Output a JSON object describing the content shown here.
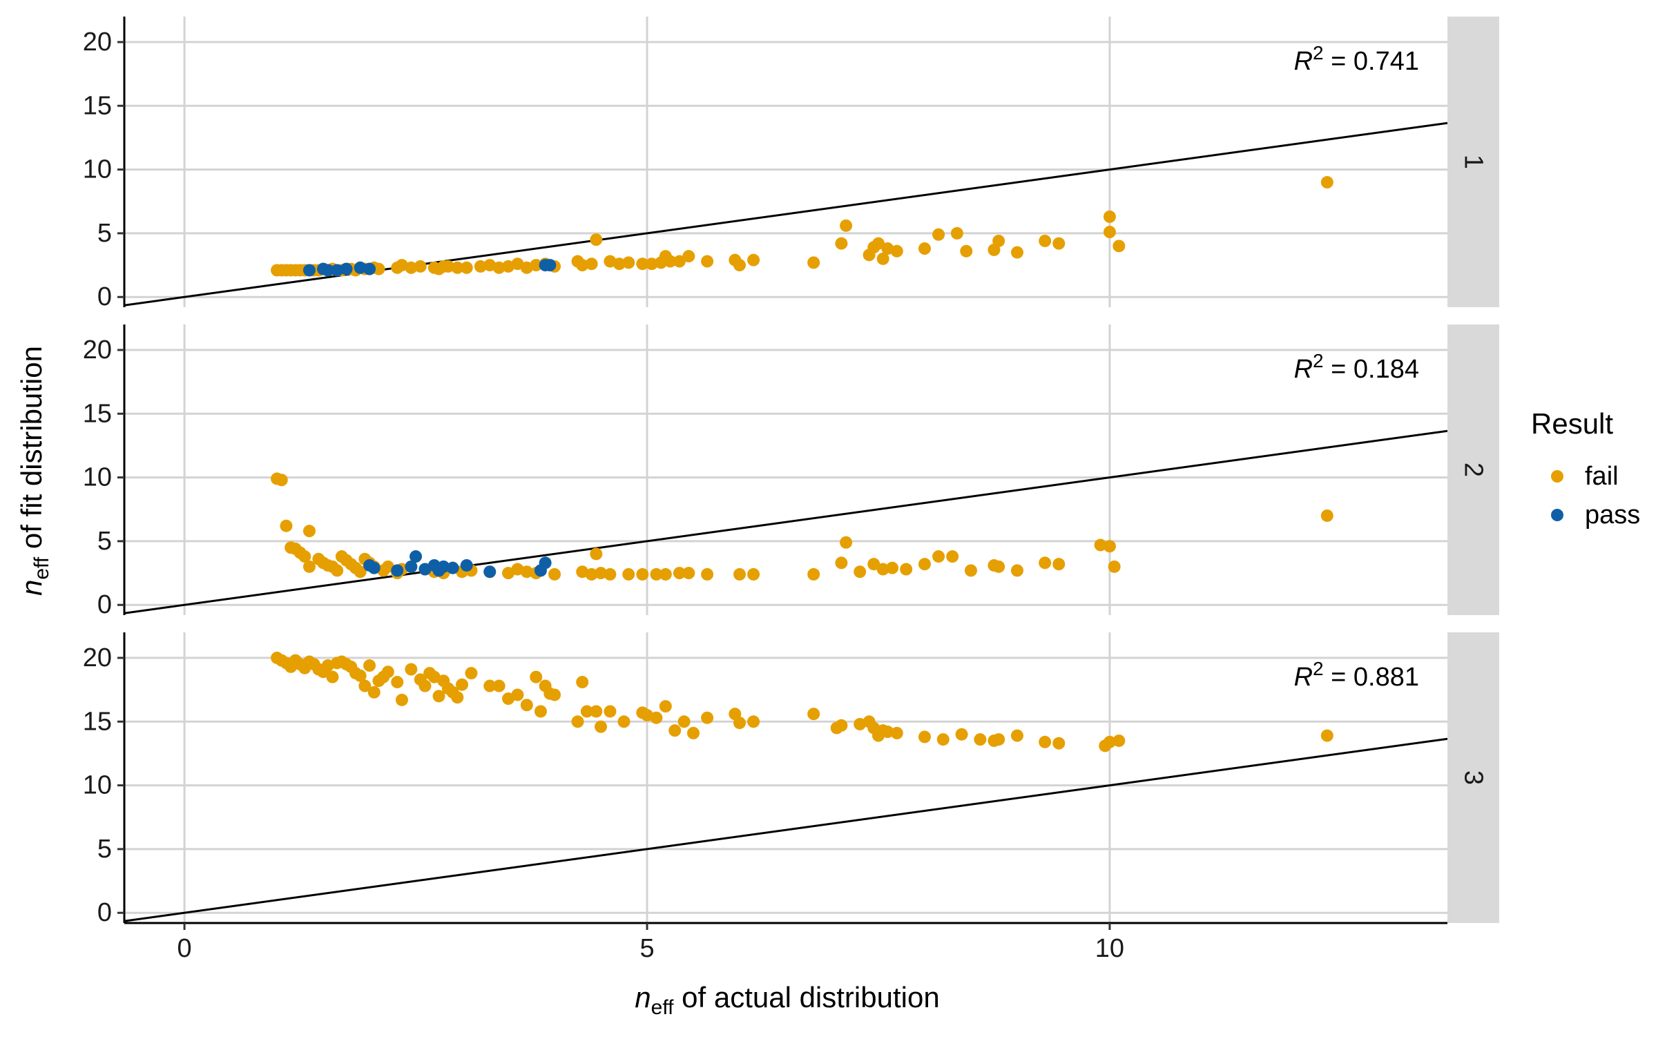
{
  "chart_data": {
    "type": "scatter",
    "x_axis": {
      "label_var": "n",
      "label_sub": "eff",
      "label_rest": " of actual distribution",
      "ticks": [
        0,
        5,
        10
      ],
      "tick_labels": [
        "0",
        "5",
        "10"
      ],
      "range": [
        -0.65,
        13.65
      ]
    },
    "y_axis": {
      "label_var": "n",
      "label_sub": "eff",
      "label_rest": " of fit distribution",
      "ticks": [
        0,
        5,
        10,
        15,
        20
      ],
      "tick_labels": [
        "0",
        "5",
        "10",
        "15",
        "20"
      ],
      "range": [
        -0.8,
        22.0
      ]
    },
    "reference_line": {
      "slope": 1,
      "intercept": 0
    },
    "grid": true,
    "legend": {
      "title": "Result",
      "position": "right",
      "entries": [
        {
          "label": "fail",
          "color": "#E69F00"
        },
        {
          "label": "pass",
          "color": "#0F5FA6"
        }
      ]
    },
    "panels": [
      {
        "strip": "1",
        "r2_var": "R",
        "r2_sup": "2",
        "r2_value": " = 0.741",
        "fail": [
          [
            1.0,
            2.1
          ],
          [
            1.05,
            2.1
          ],
          [
            1.1,
            2.1
          ],
          [
            1.15,
            2.1
          ],
          [
            1.2,
            2.1
          ],
          [
            1.25,
            2.1
          ],
          [
            1.3,
            2.1
          ],
          [
            1.35,
            2.1
          ],
          [
            1.4,
            2.1
          ],
          [
            1.45,
            2.1
          ],
          [
            1.5,
            2.2
          ],
          [
            1.55,
            2.1
          ],
          [
            1.6,
            2.2
          ],
          [
            1.7,
            2.1
          ],
          [
            1.75,
            2.2
          ],
          [
            1.8,
            2.2
          ],
          [
            1.85,
            2.1
          ],
          [
            1.9,
            2.3
          ],
          [
            1.95,
            2.2
          ],
          [
            2.0,
            2.2
          ],
          [
            2.05,
            2.3
          ],
          [
            2.1,
            2.2
          ],
          [
            2.3,
            2.3
          ],
          [
            2.35,
            2.5
          ],
          [
            2.45,
            2.3
          ],
          [
            2.55,
            2.4
          ],
          [
            2.7,
            2.3
          ],
          [
            2.75,
            2.2
          ],
          [
            2.8,
            2.4
          ],
          [
            2.85,
            2.4
          ],
          [
            2.95,
            2.3
          ],
          [
            3.05,
            2.3
          ],
          [
            3.2,
            2.4
          ],
          [
            3.3,
            2.5
          ],
          [
            3.4,
            2.3
          ],
          [
            3.5,
            2.4
          ],
          [
            3.6,
            2.6
          ],
          [
            3.7,
            2.3
          ],
          [
            3.8,
            2.5
          ],
          [
            3.9,
            2.6
          ],
          [
            4.0,
            2.4
          ],
          [
            4.25,
            2.8
          ],
          [
            4.3,
            2.5
          ],
          [
            4.4,
            2.6
          ],
          [
            4.45,
            4.5
          ],
          [
            4.6,
            2.8
          ],
          [
            4.7,
            2.6
          ],
          [
            4.8,
            2.7
          ],
          [
            4.95,
            2.6
          ],
          [
            5.05,
            2.6
          ],
          [
            5.15,
            2.7
          ],
          [
            5.2,
            3.2
          ],
          [
            5.25,
            2.8
          ],
          [
            5.35,
            2.8
          ],
          [
            5.45,
            3.2
          ],
          [
            5.65,
            2.8
          ],
          [
            5.95,
            2.9
          ],
          [
            6.0,
            2.5
          ],
          [
            6.15,
            2.9
          ],
          [
            6.8,
            2.7
          ],
          [
            7.1,
            4.2
          ],
          [
            7.15,
            5.6
          ],
          [
            7.4,
            3.3
          ],
          [
            7.45,
            3.9
          ],
          [
            7.5,
            4.2
          ],
          [
            7.55,
            3.0
          ],
          [
            7.6,
            3.8
          ],
          [
            7.7,
            3.6
          ],
          [
            8.0,
            3.8
          ],
          [
            8.15,
            4.9
          ],
          [
            8.35,
            5.0
          ],
          [
            8.45,
            3.6
          ],
          [
            8.75,
            3.7
          ],
          [
            8.8,
            4.4
          ],
          [
            9.0,
            3.5
          ],
          [
            9.3,
            4.4
          ],
          [
            9.45,
            4.2
          ],
          [
            10.0,
            6.3
          ],
          [
            10.0,
            5.1
          ],
          [
            10.1,
            4.0
          ],
          [
            12.35,
            9.0
          ]
        ],
        "pass": [
          [
            1.35,
            2.1
          ],
          [
            1.5,
            2.2
          ],
          [
            1.55,
            2.1
          ],
          [
            1.65,
            2.1
          ],
          [
            1.75,
            2.2
          ],
          [
            1.9,
            2.3
          ],
          [
            2.0,
            2.2
          ],
          [
            3.9,
            2.5
          ],
          [
            3.95,
            2.5
          ]
        ]
      },
      {
        "strip": "2",
        "r2_var": "R",
        "r2_sup": "2",
        "r2_value": " = 0.184",
        "fail": [
          [
            1.0,
            9.9
          ],
          [
            1.05,
            9.8
          ],
          [
            1.1,
            6.2
          ],
          [
            1.15,
            4.5
          ],
          [
            1.2,
            4.4
          ],
          [
            1.25,
            4.1
          ],
          [
            1.3,
            3.8
          ],
          [
            1.35,
            5.8
          ],
          [
            1.35,
            3.0
          ],
          [
            1.45,
            3.6
          ],
          [
            1.5,
            3.3
          ],
          [
            1.55,
            3.1
          ],
          [
            1.6,
            3.0
          ],
          [
            1.65,
            2.7
          ],
          [
            1.7,
            3.8
          ],
          [
            1.75,
            3.5
          ],
          [
            1.8,
            3.2
          ],
          [
            1.85,
            2.9
          ],
          [
            1.9,
            2.6
          ],
          [
            1.95,
            3.6
          ],
          [
            2.0,
            3.3
          ],
          [
            2.05,
            3.0
          ],
          [
            2.15,
            2.7
          ],
          [
            2.2,
            3.0
          ],
          [
            2.3,
            2.5
          ],
          [
            2.35,
            2.8
          ],
          [
            2.45,
            3.0
          ],
          [
            2.6,
            2.8
          ],
          [
            2.7,
            2.6
          ],
          [
            2.8,
            2.5
          ],
          [
            2.9,
            2.9
          ],
          [
            3.0,
            2.6
          ],
          [
            3.1,
            2.7
          ],
          [
            3.3,
            2.6
          ],
          [
            3.5,
            2.5
          ],
          [
            3.6,
            2.8
          ],
          [
            3.7,
            2.6
          ],
          [
            3.8,
            2.5
          ],
          [
            4.0,
            2.4
          ],
          [
            4.3,
            2.6
          ],
          [
            4.4,
            2.4
          ],
          [
            4.45,
            4.0
          ],
          [
            4.5,
            2.5
          ],
          [
            4.6,
            2.4
          ],
          [
            4.8,
            2.4
          ],
          [
            4.95,
            2.4
          ],
          [
            5.1,
            2.4
          ],
          [
            5.2,
            2.4
          ],
          [
            5.35,
            2.5
          ],
          [
            5.45,
            2.5
          ],
          [
            5.65,
            2.4
          ],
          [
            6.0,
            2.4
          ],
          [
            6.15,
            2.4
          ],
          [
            6.8,
            2.4
          ],
          [
            7.1,
            3.3
          ],
          [
            7.15,
            4.9
          ],
          [
            7.3,
            2.6
          ],
          [
            7.45,
            3.2
          ],
          [
            7.55,
            2.8
          ],
          [
            7.65,
            2.9
          ],
          [
            7.8,
            2.8
          ],
          [
            8.0,
            3.2
          ],
          [
            8.15,
            3.8
          ],
          [
            8.3,
            3.8
          ],
          [
            8.5,
            2.7
          ],
          [
            8.75,
            3.1
          ],
          [
            8.8,
            3.0
          ],
          [
            9.0,
            2.7
          ],
          [
            9.3,
            3.3
          ],
          [
            9.45,
            3.2
          ],
          [
            9.9,
            4.7
          ],
          [
            10.0,
            4.6
          ],
          [
            10.05,
            3.0
          ],
          [
            12.35,
            7.0
          ]
        ],
        "pass": [
          [
            2.0,
            3.1
          ],
          [
            2.05,
            2.9
          ],
          [
            2.3,
            2.7
          ],
          [
            2.45,
            3.0
          ],
          [
            2.5,
            3.8
          ],
          [
            2.6,
            2.8
          ],
          [
            2.7,
            3.1
          ],
          [
            2.75,
            2.7
          ],
          [
            2.8,
            3.0
          ],
          [
            2.9,
            2.9
          ],
          [
            3.05,
            3.1
          ],
          [
            3.3,
            2.6
          ],
          [
            3.85,
            2.7
          ],
          [
            3.9,
            3.3
          ]
        ]
      },
      {
        "strip": "3",
        "r2_var": "R",
        "r2_sup": "2",
        "r2_value": " = 0.881",
        "fail": [
          [
            1.0,
            20.0
          ],
          [
            1.05,
            19.8
          ],
          [
            1.1,
            19.6
          ],
          [
            1.15,
            19.3
          ],
          [
            1.2,
            19.8
          ],
          [
            1.25,
            19.5
          ],
          [
            1.3,
            19.2
          ],
          [
            1.35,
            19.7
          ],
          [
            1.4,
            19.5
          ],
          [
            1.45,
            19.1
          ],
          [
            1.5,
            18.9
          ],
          [
            1.55,
            19.4
          ],
          [
            1.6,
            18.5
          ],
          [
            1.65,
            19.6
          ],
          [
            1.7,
            19.7
          ],
          [
            1.75,
            19.5
          ],
          [
            1.8,
            19.3
          ],
          [
            1.85,
            18.8
          ],
          [
            1.9,
            18.6
          ],
          [
            1.95,
            17.8
          ],
          [
            2.0,
            19.4
          ],
          [
            2.05,
            17.3
          ],
          [
            2.1,
            18.2
          ],
          [
            2.15,
            18.5
          ],
          [
            2.2,
            18.9
          ],
          [
            2.3,
            18.1
          ],
          [
            2.35,
            16.7
          ],
          [
            2.45,
            19.1
          ],
          [
            2.55,
            18.3
          ],
          [
            2.6,
            17.8
          ],
          [
            2.65,
            18.8
          ],
          [
            2.7,
            18.5
          ],
          [
            2.75,
            17.0
          ],
          [
            2.8,
            18.2
          ],
          [
            2.85,
            17.6
          ],
          [
            2.9,
            17.3
          ],
          [
            2.95,
            16.9
          ],
          [
            3.0,
            17.9
          ],
          [
            3.1,
            18.8
          ],
          [
            3.3,
            17.8
          ],
          [
            3.4,
            17.8
          ],
          [
            3.5,
            16.8
          ],
          [
            3.6,
            17.1
          ],
          [
            3.7,
            16.3
          ],
          [
            3.8,
            18.5
          ],
          [
            3.85,
            15.8
          ],
          [
            3.9,
            17.8
          ],
          [
            3.95,
            17.2
          ],
          [
            4.0,
            17.1
          ],
          [
            4.25,
            15.0
          ],
          [
            4.3,
            18.1
          ],
          [
            4.35,
            15.8
          ],
          [
            4.45,
            15.8
          ],
          [
            4.5,
            14.6
          ],
          [
            4.6,
            15.8
          ],
          [
            4.75,
            15.0
          ],
          [
            4.95,
            15.7
          ],
          [
            5.0,
            15.5
          ],
          [
            5.1,
            15.3
          ],
          [
            5.2,
            16.2
          ],
          [
            5.3,
            14.3
          ],
          [
            5.4,
            15.0
          ],
          [
            5.5,
            14.1
          ],
          [
            5.65,
            15.3
          ],
          [
            5.95,
            15.6
          ],
          [
            6.0,
            14.9
          ],
          [
            6.15,
            15.0
          ],
          [
            6.8,
            15.6
          ],
          [
            7.05,
            14.5
          ],
          [
            7.1,
            14.7
          ],
          [
            7.3,
            14.8
          ],
          [
            7.4,
            15.0
          ],
          [
            7.45,
            14.5
          ],
          [
            7.5,
            13.9
          ],
          [
            7.55,
            14.3
          ],
          [
            7.6,
            14.2
          ],
          [
            7.7,
            14.1
          ],
          [
            8.0,
            13.8
          ],
          [
            8.2,
            13.6
          ],
          [
            8.4,
            14.0
          ],
          [
            8.6,
            13.6
          ],
          [
            8.75,
            13.5
          ],
          [
            8.8,
            13.6
          ],
          [
            9.0,
            13.9
          ],
          [
            9.3,
            13.4
          ],
          [
            9.45,
            13.3
          ],
          [
            9.95,
            13.1
          ],
          [
            10.0,
            13.4
          ],
          [
            10.1,
            13.5
          ],
          [
            12.35,
            13.9
          ]
        ],
        "pass": []
      }
    ]
  }
}
